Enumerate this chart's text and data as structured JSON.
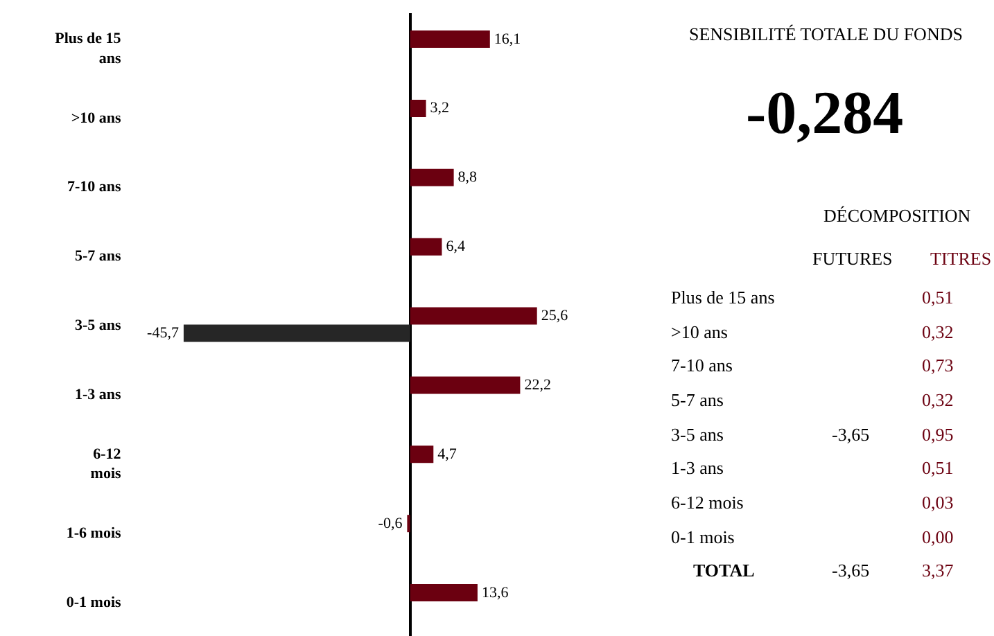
{
  "chart_data": [
    {
      "type": "bar",
      "orientation": "horizontal",
      "categories": [
        "Plus de 15\nans",
        ">10 ans",
        "7-10 ans",
        "5-7 ans",
        "3-5 ans",
        "1-3 ans",
        "6-12\nmois",
        "1-6 mois",
        "0-1 mois"
      ],
      "series": [
        {
          "color": "#6b0010",
          "values": [
            16.1,
            3.2,
            8.8,
            6.4,
            25.6,
            22.2,
            4.7,
            -0.6,
            13.6
          ],
          "value_labels": [
            "16,1",
            "3,2",
            "8,8",
            "6,4",
            "25,6",
            "22,2",
            "4,7",
            "-0,6",
            "13,6"
          ]
        },
        {
          "color": "#262626",
          "values": [
            null,
            null,
            null,
            null,
            -45.7,
            null,
            null,
            null,
            null
          ],
          "value_labels": [
            null,
            null,
            null,
            null,
            "-45,7",
            null,
            null,
            null,
            null
          ]
        }
      ]
    },
    {
      "type": "other",
      "title": "SENSIBILITÉ TOTALE DU FONDS",
      "subtitle": "-0,284",
      "annotations": [
        "DÉCOMPOSITION"
      ],
      "categories": [
        "Plus de 15 ans",
        ">10 ans",
        "7-10 ans",
        "5-7 ans",
        "3-5 ans",
        "1-3 ans",
        "6-12 mois",
        "0-1 mois",
        "TOTAL"
      ],
      "series": [
        {
          "name": "FUTURES",
          "color": "#000000",
          "values": [
            null,
            null,
            null,
            null,
            -3.65,
            null,
            null,
            null,
            -3.65
          ],
          "value_labels": [
            null,
            null,
            null,
            null,
            "-3,65",
            null,
            null,
            null,
            "-3,65"
          ]
        },
        {
          "name": "TITRES",
          "color": "#6b0010",
          "values": [
            0.51,
            0.32,
            0.73,
            0.32,
            0.95,
            0.51,
            0.03,
            0.0,
            3.37
          ],
          "value_labels": [
            "0,51",
            "0,32",
            "0,73",
            "0,32",
            "0,95",
            "0,51",
            "0,03",
            "0,00",
            "3,37"
          ]
        }
      ]
    }
  ]
}
